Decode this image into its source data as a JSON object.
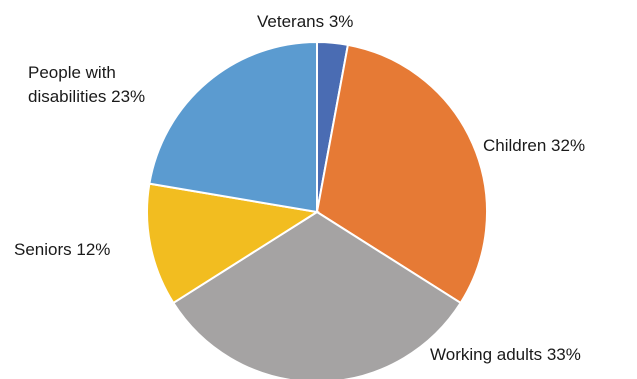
{
  "chart_data": {
    "type": "pie",
    "title": "",
    "start_angle_deg": 0,
    "direction": "clockwise",
    "slices": [
      {
        "label": "Veterans 3%",
        "value": 3,
        "color": "#4a6cb3"
      },
      {
        "label": "Children 32%",
        "value": 32,
        "color": "#e67a35"
      },
      {
        "label": "Working adults 33%",
        "value": 33,
        "color": "#a5a3a3"
      },
      {
        "label": "Seniors 12%",
        "value": 12,
        "color": "#f2bd20"
      },
      {
        "label": "People with disabilities 23%",
        "value": 23,
        "color": "#5b9bd0"
      }
    ]
  }
}
